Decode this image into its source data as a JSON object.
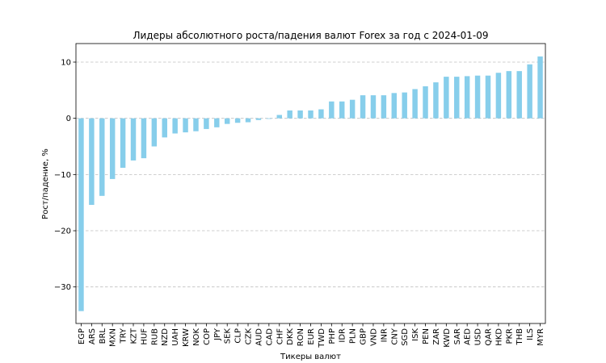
{
  "chart_data": {
    "type": "bar",
    "title": "Лидеры абсолютного роста/падения валют Forex за год с 2024-01-09",
    "xlabel": "Тикеры валют",
    "ylabel": "Рост/падение, %",
    "ylim": [
      -36.5,
      13.3
    ],
    "yticks": [
      10,
      0,
      -10,
      -20,
      -30
    ],
    "ytick_labels": [
      "10",
      "0",
      "−10",
      "−20",
      "−30"
    ],
    "grid": "horizontal dashed",
    "bar_color": "#87CEEB",
    "categories": [
      "EGP",
      "ARS",
      "BRL",
      "MXN",
      "TRY",
      "KZT",
      "HUF",
      "RUB",
      "NZD",
      "UAH",
      "KRW",
      "NOK",
      "COP",
      "JPY",
      "SEK",
      "CLP",
      "CZK",
      "AUD",
      "CAD",
      "CHF",
      "DKK",
      "RON",
      "EUR",
      "TWD",
      "PHP",
      "IDR",
      "PLN",
      "GBP",
      "VND",
      "INR",
      "CNY",
      "SGD",
      "ISK",
      "PEN",
      "ZAR",
      "KWD",
      "SAR",
      "AED",
      "USD",
      "QAR",
      "HKD",
      "PKR",
      "THB",
      "ILS",
      "MYR"
    ],
    "values": [
      -34.3,
      -15.4,
      -13.8,
      -10.8,
      -8.8,
      -7.5,
      -7.1,
      -5.0,
      -3.4,
      -2.7,
      -2.5,
      -2.3,
      -1.9,
      -1.6,
      -1.0,
      -0.8,
      -0.7,
      -0.3,
      -0.1,
      0.6,
      1.4,
      1.4,
      1.4,
      1.6,
      3.0,
      3.0,
      3.3,
      4.1,
      4.1,
      4.1,
      4.5,
      4.6,
      5.2,
      5.7,
      6.4,
      7.4,
      7.4,
      7.5,
      7.6,
      7.6,
      8.1,
      8.4,
      8.4,
      9.6,
      11.0
    ]
  }
}
